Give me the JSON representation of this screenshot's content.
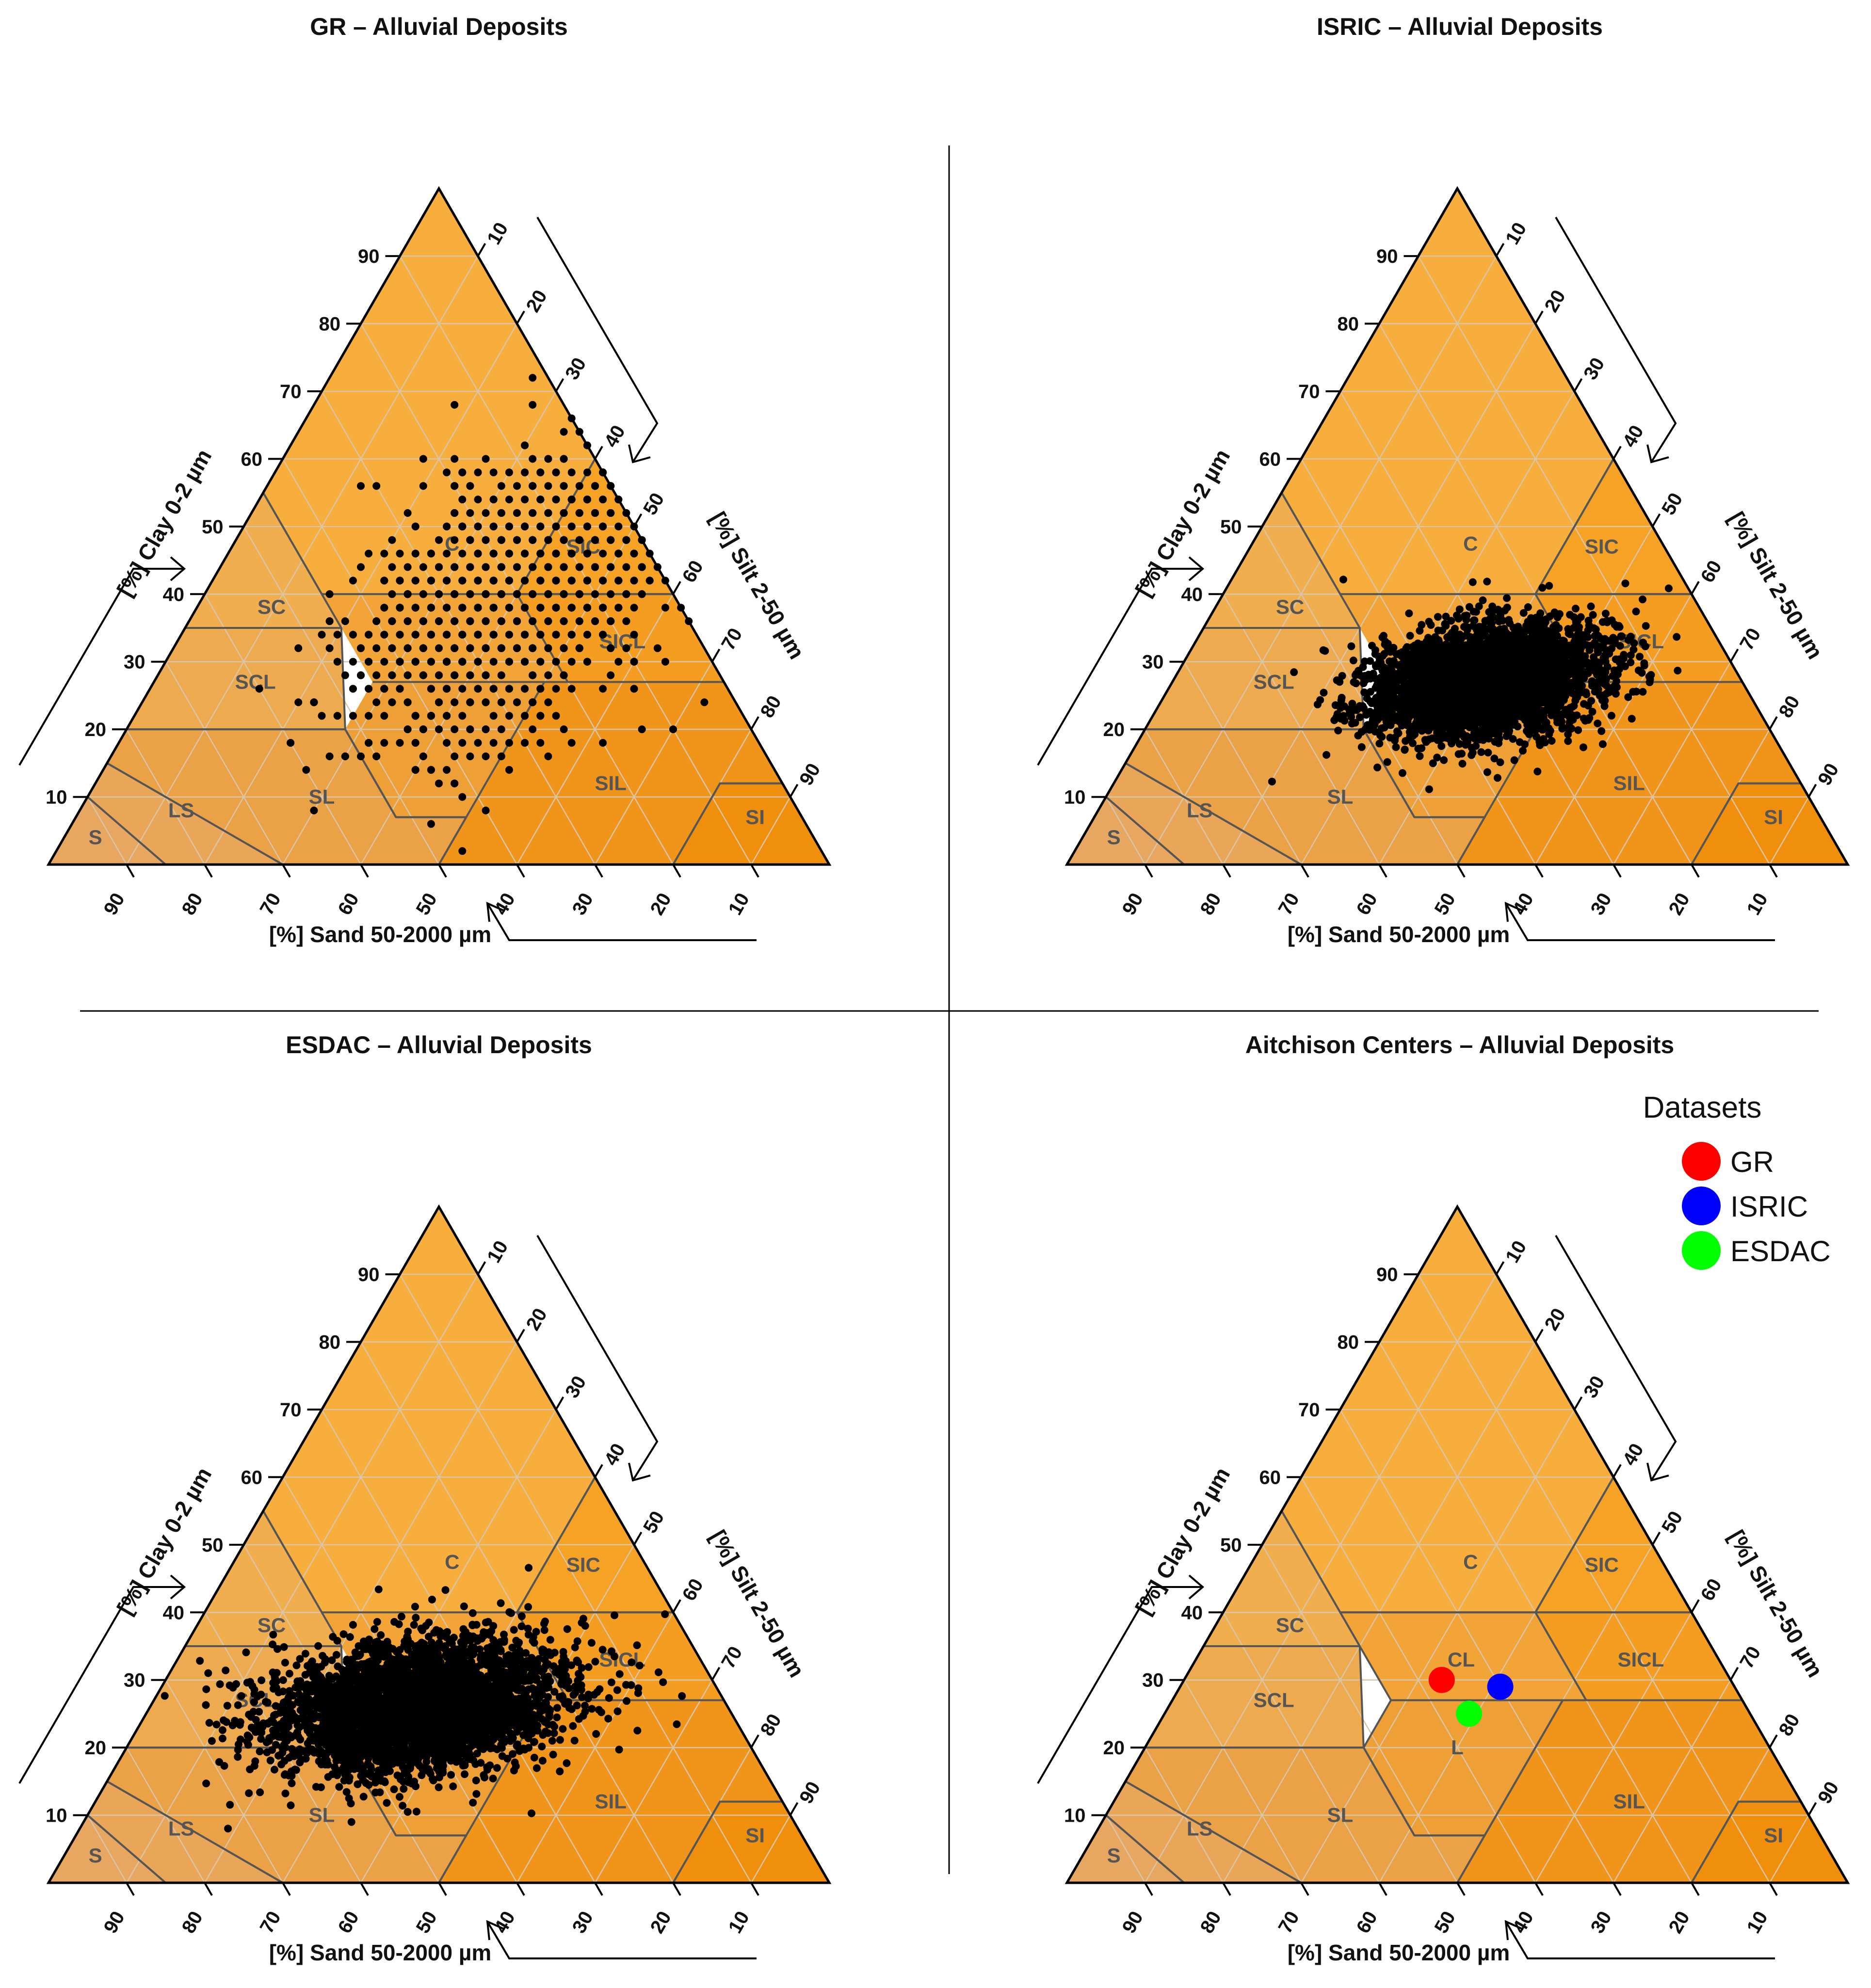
{
  "figure": {
    "titles": [
      "GR – Alluvial Deposits",
      "ISRIC – Alluvial Deposits",
      "ESDAC – Alluvial Deposits",
      "Aitchison Centers – Alluvial Deposits"
    ]
  },
  "axes": {
    "clay_label": "[%] Clay 0-2 µm",
    "silt_label": "[%] Silt 2-50 µm",
    "sand_label": "[%] Sand 50-2000 µm",
    "clay_ticks": [
      "10",
      "20",
      "30",
      "40",
      "50",
      "60",
      "70",
      "80",
      "90"
    ],
    "silt_ticks": [
      "10",
      "20",
      "30",
      "40",
      "50",
      "60",
      "70",
      "80",
      "90"
    ],
    "sand_ticks": [
      "90",
      "80",
      "70",
      "60",
      "50",
      "40",
      "30",
      "20",
      "10"
    ]
  },
  "colors": {
    "sand_corner": "#e6a866",
    "clay_corner": "#ffbb40",
    "silt_corner": "#f08a00",
    "boundary": "#555555",
    "grid": "#d9c5a8",
    "points": "#000000"
  },
  "chart_data": [
    {
      "type": "scatter",
      "subtype": "ternary",
      "title": "GR – Alluvial Deposits",
      "class_labels": [
        "C",
        "SC",
        "SCL",
        "SL",
        "LS",
        "S",
        "SIC",
        "SICL",
        "SIL",
        "SI"
      ],
      "cloud": {
        "center": [
          20,
          40,
          40
        ],
        "spread": [
          12,
          9,
          11
        ],
        "count": 1400,
        "grid_snapped": true
      },
      "points_description": "sand/silt/clay %"
    },
    {
      "type": "scatter",
      "subtype": "ternary",
      "title": "ISRIC – Alluvial Deposits",
      "class_labels": [
        "C",
        "SC",
        "SCL",
        "SL",
        "LS",
        "S",
        "SIC",
        "SICL",
        "SIL",
        "SI"
      ],
      "cloud": {
        "center": [
          33,
          40,
          27
        ],
        "spread": [
          7,
          7,
          4
        ],
        "count": 4000,
        "grid_snapped": false
      }
    },
    {
      "type": "scatter",
      "subtype": "ternary",
      "title": "ESDAC – Alluvial Deposits",
      "class_labels": [
        "C",
        "SC",
        "SCL",
        "SL",
        "LS",
        "S",
        "SIC",
        "SICL",
        "SIL",
        "SI"
      ],
      "cloud": {
        "center": [
          40,
          34,
          26
        ],
        "spread": [
          9,
          9,
          5
        ],
        "count": 3600,
        "grid_snapped": false
      }
    },
    {
      "type": "scatter",
      "subtype": "ternary",
      "title": "Aitchison Centers – Alluvial Deposits",
      "class_labels": [
        "C",
        "SC",
        "SCL",
        "SL",
        "LS",
        "S",
        "SIC",
        "SICL",
        "SIL",
        "SI",
        "CL",
        "L"
      ],
      "legend": {
        "title": "Datasets",
        "placement": "top-right"
      },
      "series": [
        {
          "name": "GR",
          "color": "#ff0000",
          "sand": 37,
          "silt": 33,
          "clay": 30
        },
        {
          "name": "ISRIC",
          "color": "#0000ff",
          "sand": 30,
          "silt": 41,
          "clay": 29
        },
        {
          "name": "ESDAC",
          "color": "#00ff00",
          "sand": 36,
          "silt": 39,
          "clay": 25
        }
      ]
    }
  ]
}
